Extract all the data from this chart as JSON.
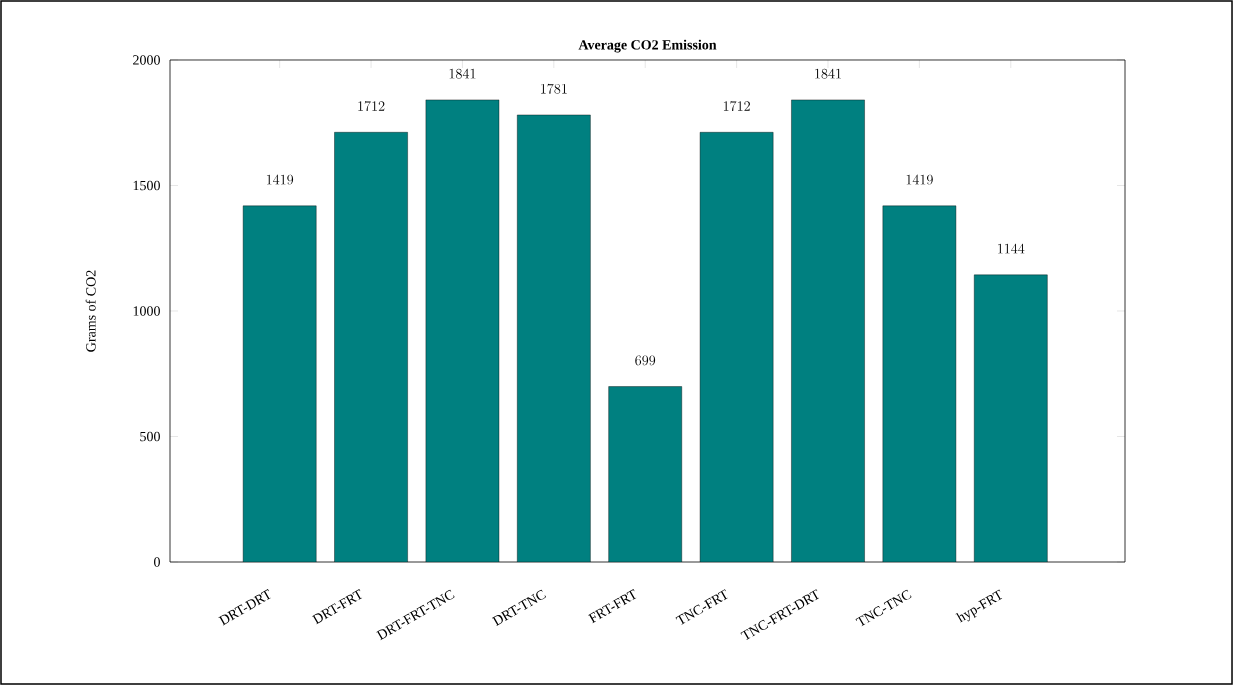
{
  "chart_data": {
    "type": "bar",
    "title": "Average CO2 Emission",
    "ylabel": "Grams of CO2",
    "categories": [
      "DRT-DRT",
      "DRT-FRT",
      "DRT-FRT-TNC",
      "DRT-TNC",
      "FRT-FRT",
      "TNC-FRT",
      "TNC-FRT-DRT",
      "TNC-TNC",
      "hyp-FRT"
    ],
    "values": [
      1419,
      1712,
      1841,
      1781,
      699,
      1712,
      1841,
      1419,
      1144
    ],
    "color": "#008080",
    "ylim": [
      0,
      2000
    ],
    "yticks": [
      0,
      500,
      1000,
      1500,
      2000
    ],
    "data_labels": true
  }
}
